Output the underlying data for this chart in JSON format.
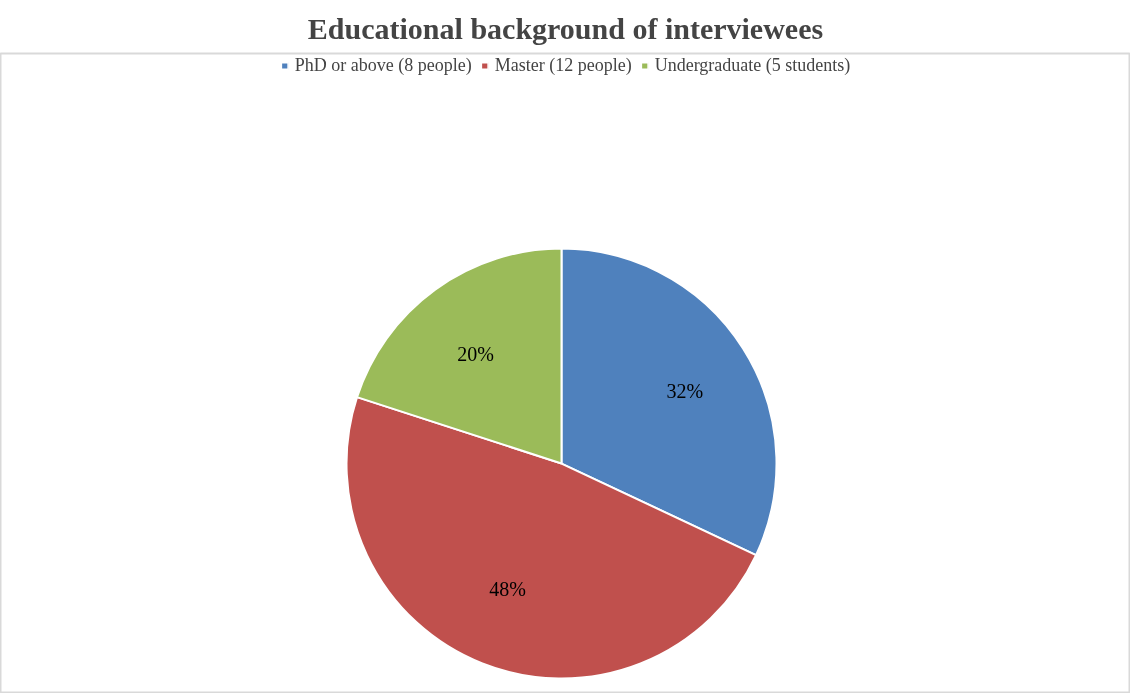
{
  "chart_data": {
    "type": "pie",
    "title": "Educational background of interviewees",
    "categories": [
      "PhD or above (8 people)",
      "Master (12 people)",
      "Undergraduate (5 students)"
    ],
    "values": [
      32,
      48,
      20
    ],
    "colors": [
      "#4f81bd",
      "#c0504d",
      "#9bbb59"
    ],
    "value_labels": [
      "32%",
      "48%",
      "20%"
    ],
    "legend": "top"
  }
}
